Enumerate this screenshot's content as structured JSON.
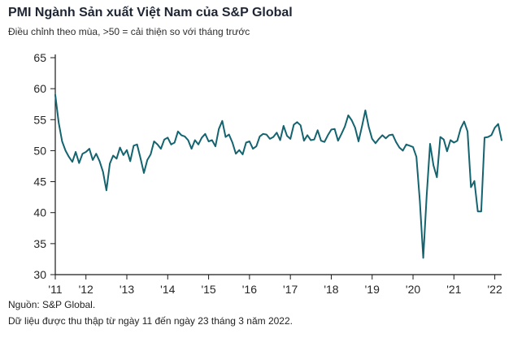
{
  "header": {
    "title": "PMI Ngành Sản xuất Việt Nam của S&P Global",
    "subtitle": "Điều chỉnh theo mùa, >50 = cải thiện so với tháng trước"
  },
  "footer": {
    "source": "Nguồn: S&P Global.",
    "note": "Dữ liệu được thu thập từ ngày 11 đến ngày 23 tháng 3 năm 2022."
  },
  "chart_data": {
    "type": "line",
    "title": "PMI Ngành Sản xuất Việt Nam của S&P Global",
    "subtitle": "Điều chỉnh theo mùa, >50 = cải thiện so với tháng trước",
    "frequency": "monthly",
    "x_start": "2011-04",
    "x_end": "2022-03",
    "ylim": [
      30,
      65
    ],
    "y_ticks": [
      30,
      35,
      40,
      45,
      50,
      55,
      60,
      65
    ],
    "x_ticks": [
      {
        "label": "'11",
        "index": 0
      },
      {
        "label": "'12",
        "index": 9
      },
      {
        "label": "'13",
        "index": 21
      },
      {
        "label": "'14",
        "index": 33
      },
      {
        "label": "'15",
        "index": 45
      },
      {
        "label": "'16",
        "index": 57
      },
      {
        "label": "'17",
        "index": 69
      },
      {
        "label": "'18",
        "index": 81
      },
      {
        "label": "'19",
        "index": 93
      },
      {
        "label": "'20",
        "index": 105
      },
      {
        "label": "'21",
        "index": 117
      },
      {
        "label": "'22",
        "index": 129
      }
    ],
    "values": [
      59.0,
      54.5,
      51.5,
      50.0,
      49.0,
      48.2,
      49.8,
      48.0,
      49.5,
      49.8,
      50.3,
      48.5,
      49.5,
      48.3,
      46.6,
      43.6,
      47.9,
      49.2,
      48.7,
      50.5,
      49.3,
      50.1,
      48.3,
      50.8,
      51.0,
      48.8,
      46.4,
      48.5,
      49.4,
      51.5,
      51.0,
      50.3,
      51.8,
      52.1,
      51.0,
      51.3,
      53.1,
      52.5,
      52.3,
      51.7,
      50.3,
      51.7,
      51.0,
      52.1,
      52.7,
      51.5,
      51.7,
      50.7,
      53.5,
      54.8,
      52.2,
      52.6,
      51.3,
      49.5,
      50.1,
      49.4,
      51.3,
      51.5,
      50.3,
      50.7,
      52.3,
      52.7,
      52.6,
      51.9,
      52.2,
      52.9,
      51.7,
      54.0,
      52.4,
      51.9,
      54.2,
      54.6,
      54.1,
      51.6,
      52.5,
      51.7,
      51.8,
      53.3,
      51.6,
      51.4,
      52.5,
      53.4,
      53.5,
      51.6,
      52.7,
      53.9,
      55.7,
      54.9,
      53.7,
      51.5,
      53.9,
      56.5,
      53.8,
      51.9,
      51.2,
      51.9,
      52.5,
      52.0,
      52.5,
      52.6,
      51.4,
      50.5,
      50.0,
      51.0,
      50.8,
      50.6,
      49.0,
      41.9,
      32.7,
      42.7,
      51.1,
      47.6,
      45.7,
      52.2,
      51.8,
      49.9,
      51.7,
      51.3,
      51.6,
      53.6,
      54.7,
      53.1,
      44.1,
      45.1,
      40.2,
      40.2,
      52.1,
      52.2,
      52.5,
      53.7,
      54.3,
      51.7
    ],
    "colors": {
      "line": "#146470",
      "axis": "#1a1a1a",
      "tick_text": "#262626"
    },
    "legend": "none",
    "grid": "off"
  }
}
